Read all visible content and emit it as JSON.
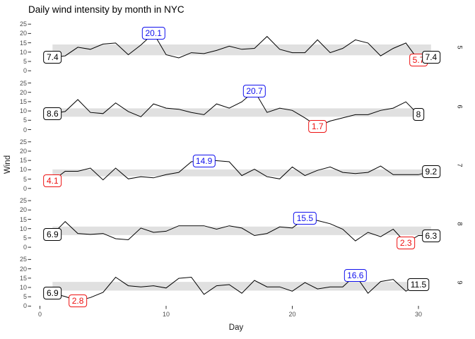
{
  "title": "Daily wind intensity by month in NYC",
  "axes": {
    "x_label": "Day",
    "y_label": "Wind",
    "x_ticks": [
      0,
      10,
      20,
      30
    ],
    "y_ticks": [
      25,
      20,
      15,
      10,
      5,
      0
    ]
  },
  "colors": {
    "line": "#000000",
    "band": "#e0e0e0",
    "axis_text": "#4d4d4d",
    "tick_mark": "#333333",
    "strip_text": "#1a1a1a",
    "label_first_last": "#000000",
    "label_max": "#1111ee",
    "label_min": "#ee1111",
    "label_fill": "#ffffff"
  },
  "chart_data": {
    "type": "line",
    "title": "Daily wind intensity by month in NYC",
    "xlabel": "Day",
    "ylabel": "Wind",
    "xlim": [
      0,
      31
    ],
    "ylim": [
      0,
      25
    ],
    "grid": "off",
    "facet_variable": "Month",
    "facet_strip_side": "right",
    "facets": [
      {
        "month": "5",
        "days": [
          1,
          2,
          3,
          4,
          5,
          6,
          7,
          8,
          9,
          10,
          11,
          12,
          13,
          14,
          15,
          16,
          17,
          18,
          19,
          20,
          21,
          22,
          23,
          24,
          25,
          26,
          27,
          28,
          29,
          30,
          31
        ],
        "wind": [
          7.4,
          8.0,
          12.6,
          11.5,
          14.3,
          14.9,
          8.6,
          13.8,
          20.1,
          8.6,
          6.9,
          9.7,
          9.2,
          10.9,
          13.2,
          11.5,
          12.0,
          18.4,
          11.5,
          9.7,
          9.7,
          16.6,
          9.7,
          12.0,
          16.6,
          14.9,
          8.0,
          12.0,
          14.9,
          5.7,
          7.4
        ],
        "band": {
          "lo": 8.3,
          "hi": 14.1
        },
        "labels": [
          {
            "day": 1,
            "value": 7.4,
            "text": "7.4",
            "kind": "first"
          },
          {
            "day": 9,
            "value": 20.1,
            "text": "20.1",
            "kind": "max"
          },
          {
            "day": 30,
            "value": 5.7,
            "text": "5.7",
            "kind": "min"
          },
          {
            "day": 31,
            "value": 7.4,
            "text": "7.4",
            "kind": "last"
          }
        ]
      },
      {
        "month": "6",
        "days": [
          1,
          2,
          3,
          4,
          5,
          6,
          7,
          8,
          9,
          10,
          11,
          12,
          13,
          14,
          15,
          16,
          17,
          18,
          19,
          20,
          21,
          22,
          23,
          24,
          25,
          26,
          27,
          28,
          29,
          30
        ],
        "wind": [
          8.6,
          9.7,
          16.1,
          9.2,
          8.6,
          14.3,
          9.7,
          6.9,
          13.8,
          11.5,
          10.9,
          9.2,
          8.0,
          13.8,
          11.5,
          14.9,
          20.7,
          9.2,
          11.5,
          10.3,
          6.3,
          1.7,
          4.6,
          6.3,
          8.0,
          8.0,
          10.3,
          11.5,
          14.9,
          8.0
        ],
        "band": {
          "lo": 6.9,
          "hi": 11.4
        },
        "labels": [
          {
            "day": 1,
            "value": 8.6,
            "text": "8.6",
            "kind": "first"
          },
          {
            "day": 17,
            "value": 20.7,
            "text": "20.7",
            "kind": "max"
          },
          {
            "day": 22,
            "value": 1.7,
            "text": "1.7",
            "kind": "min"
          },
          {
            "day": 30,
            "value": 8.0,
            "text": "8",
            "kind": "last"
          }
        ]
      },
      {
        "month": "7",
        "days": [
          1,
          2,
          3,
          4,
          5,
          6,
          7,
          8,
          9,
          10,
          11,
          12,
          13,
          14,
          15,
          16,
          17,
          18,
          19,
          20,
          21,
          22,
          23,
          24,
          25,
          26,
          27,
          28,
          29,
          30,
          31
        ],
        "wind": [
          4.1,
          9.2,
          9.2,
          10.9,
          4.6,
          10.9,
          5.1,
          6.3,
          5.7,
          7.4,
          8.6,
          14.3,
          14.9,
          14.9,
          14.3,
          6.9,
          10.3,
          6.3,
          5.1,
          11.5,
          6.9,
          9.7,
          11.5,
          8.6,
          8.0,
          8.6,
          12.0,
          7.4,
          7.4,
          7.4,
          9.2
        ],
        "band": {
          "lo": 6.5,
          "hi": 10.2
        },
        "labels": [
          {
            "day": 1,
            "value": 4.1,
            "text": "4.1",
            "kind": "min"
          },
          {
            "day": 13,
            "value": 14.9,
            "text": "14.9",
            "kind": "max"
          },
          {
            "day": 31,
            "value": 9.2,
            "text": "9.2",
            "kind": "last"
          }
        ]
      },
      {
        "month": "8",
        "days": [
          1,
          2,
          3,
          4,
          5,
          6,
          7,
          8,
          9,
          10,
          11,
          12,
          13,
          14,
          15,
          16,
          17,
          18,
          19,
          20,
          21,
          22,
          23,
          24,
          25,
          26,
          27,
          28,
          29,
          30,
          31
        ],
        "wind": [
          6.9,
          13.8,
          7.4,
          6.9,
          7.4,
          4.6,
          4.0,
          10.3,
          8.0,
          8.6,
          11.5,
          11.5,
          11.5,
          9.7,
          11.5,
          10.3,
          6.3,
          7.4,
          10.9,
          10.3,
          15.5,
          14.3,
          12.6,
          9.7,
          3.4,
          8.0,
          5.7,
          9.7,
          2.3,
          6.3,
          6.3
        ],
        "band": {
          "lo": 6.5,
          "hi": 11.1
        },
        "labels": [
          {
            "day": 1,
            "value": 6.9,
            "text": "6.9",
            "kind": "first"
          },
          {
            "day": 21,
            "value": 15.5,
            "text": "15.5",
            "kind": "max"
          },
          {
            "day": 29,
            "value": 2.3,
            "text": "2.3",
            "kind": "min"
          },
          {
            "day": 31,
            "value": 6.3,
            "text": "6.3",
            "kind": "last"
          }
        ]
      },
      {
        "month": "9",
        "days": [
          1,
          2,
          3,
          4,
          5,
          6,
          7,
          8,
          9,
          10,
          11,
          12,
          13,
          14,
          15,
          16,
          17,
          18,
          19,
          20,
          21,
          22,
          23,
          24,
          25,
          26,
          27,
          28,
          29,
          30
        ],
        "wind": [
          6.9,
          5.1,
          2.8,
          4.6,
          7.4,
          15.5,
          10.9,
          10.3,
          10.9,
          9.7,
          14.9,
          15.5,
          6.3,
          10.9,
          11.5,
          6.9,
          13.8,
          10.3,
          10.3,
          8.0,
          12.6,
          9.2,
          10.3,
          10.3,
          16.6,
          6.9,
          13.2,
          14.3,
          8.0,
          11.5
        ],
        "band": {
          "lo": 8.3,
          "hi": 13.0
        },
        "labels": [
          {
            "day": 1,
            "value": 6.9,
            "text": "6.9",
            "kind": "first"
          },
          {
            "day": 3,
            "value": 2.8,
            "text": "2.8",
            "kind": "min"
          },
          {
            "day": 25,
            "value": 16.6,
            "text": "16.6",
            "kind": "max"
          },
          {
            "day": 30,
            "value": 11.5,
            "text": "11.5",
            "kind": "last"
          }
        ]
      }
    ]
  }
}
